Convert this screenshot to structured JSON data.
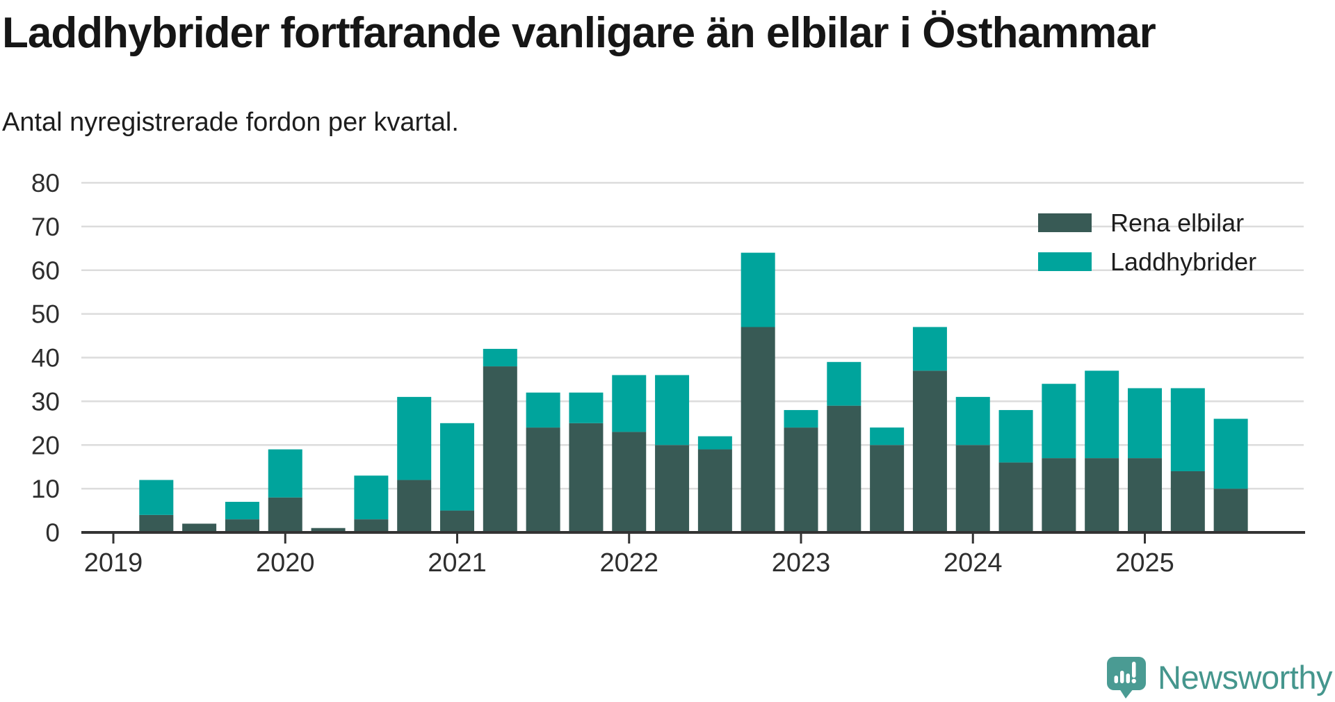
{
  "title": "Laddhybrider fortfarande vanligare än elbilar i Östhammar",
  "subtitle": "Antal nyregistrerade fordon per kvartal.",
  "branding": {
    "logo_text": "Newsworthy",
    "logo_icon": "newsworthy-speech-bubble-barchart-icon",
    "logo_color": "#4a9b93"
  },
  "colors": {
    "rena_elbilar": "#385a55",
    "laddhybrider": "#00a49c",
    "axis": "#333333",
    "grid": "#dcdcdc",
    "tick_label": "#2e2e2e",
    "background": "#ffffff"
  },
  "chart_data": {
    "type": "bar",
    "stacked": true,
    "title": "Laddhybrider fortfarande vanligare än elbilar i Östhammar",
    "subtitle": "Antal nyregistrerade fordon per kvartal.",
    "xlabel": "",
    "ylabel": "",
    "ylim": [
      0,
      80
    ],
    "y_ticks": [
      0,
      10,
      20,
      30,
      40,
      50,
      60,
      70,
      80
    ],
    "grid": "horizontal",
    "legend_position": "top-right",
    "x": [
      "2019 Q1",
      "2019 Q2",
      "2019 Q3",
      "2019 Q4",
      "2020 Q1",
      "2020 Q2",
      "2020 Q3",
      "2020 Q4",
      "2021 Q1",
      "2021 Q2",
      "2021 Q3",
      "2021 Q4",
      "2022 Q1",
      "2022 Q2",
      "2022 Q3",
      "2022 Q4",
      "2023 Q1",
      "2023 Q2",
      "2023 Q3",
      "2023 Q4",
      "2024 Q1",
      "2024 Q2",
      "2024 Q3",
      "2024 Q4",
      "2025 Q1",
      "2025 Q2",
      "2025 Q3"
    ],
    "x_tick_labels": [
      "2019",
      "2020",
      "2021",
      "2022",
      "2023",
      "2024",
      "2025"
    ],
    "series": [
      {
        "name": "Rena elbilar",
        "color": "#385a55",
        "values": [
          0,
          4,
          2,
          3,
          8,
          1,
          3,
          12,
          5,
          38,
          24,
          25,
          23,
          20,
          19,
          47,
          24,
          29,
          20,
          37,
          20,
          16,
          17,
          17,
          17,
          14,
          10
        ]
      },
      {
        "name": "Laddhybrider",
        "color": "#00a49c",
        "values": [
          0,
          8,
          0,
          4,
          11,
          0,
          10,
          19,
          20,
          4,
          8,
          7,
          13,
          16,
          3,
          17,
          4,
          10,
          4,
          10,
          11,
          12,
          17,
          20,
          16,
          19,
          16
        ]
      }
    ],
    "totals": [
      0,
      12,
      2,
      7,
      19,
      1,
      13,
      31,
      25,
      42,
      32,
      32,
      36,
      36,
      22,
      64,
      28,
      39,
      24,
      47,
      31,
      28,
      34,
      37,
      33,
      33,
      26
    ]
  }
}
